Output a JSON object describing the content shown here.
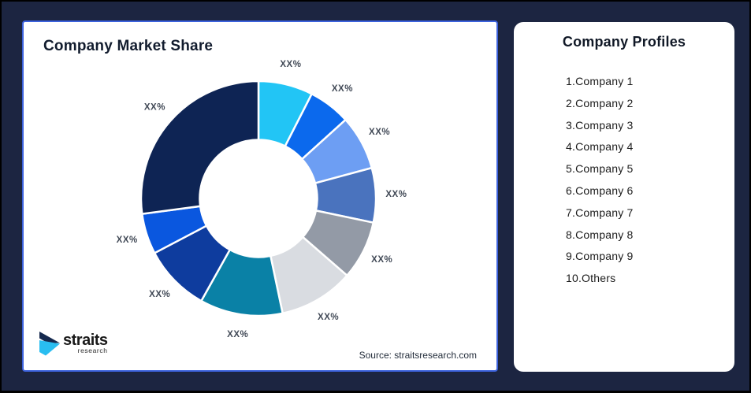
{
  "page": {
    "background_color": "#1C2541",
    "frame_border_color": "#000000"
  },
  "chart_card": {
    "title": "Company Market Share",
    "source": "Source: straitsresearch.com",
    "border_color": "#3C62DD",
    "logo": {
      "brand": "straits",
      "sub": "research",
      "arrow_navy": "#15294E",
      "arrow_cyan": "#29BDF0"
    }
  },
  "chart_data": {
    "type": "pie",
    "subtype": "donut",
    "title": "Company Market Share",
    "start_angle_deg": 0,
    "direction": "clockwise",
    "inner_radius_ratio": 0.5,
    "gap_stroke_color": "#ffffff",
    "data_label_placeholder": "XX%",
    "legend_position": "none",
    "slices": [
      {
        "label": "XX%",
        "value_pct": 7.5,
        "color": "#22C5F5"
      },
      {
        "label": "XX%",
        "value_pct": 5.8,
        "color": "#0B69ED"
      },
      {
        "label": "XX%",
        "value_pct": 7.5,
        "color": "#6D9EF3"
      },
      {
        "label": "XX%",
        "value_pct": 7.5,
        "color": "#4A73BE"
      },
      {
        "label": "XX%",
        "value_pct": 8.1,
        "color": "#939AA6"
      },
      {
        "label": "XX%",
        "value_pct": 10.3,
        "color": "#D9DCE1"
      },
      {
        "label": "XX%",
        "value_pct": 11.4,
        "color": "#0A81A6"
      },
      {
        "label": "XX%",
        "value_pct": 9.2,
        "color": "#0E3C9E"
      },
      {
        "label": "XX%",
        "value_pct": 5.6,
        "color": "#0A57DF"
      },
      {
        "label": "XX%",
        "value_pct": 27.1,
        "color": "#0E2454"
      }
    ]
  },
  "profiles_card": {
    "title": "Company Profiles",
    "items": [
      "1.Company 1",
      "2.Company 2",
      "3.Company 3",
      "4.Company 4",
      "5.Company 5",
      "6.Company 6",
      "7.Company 7",
      "8.Company 8",
      "9.Company 9",
      "10.Others"
    ]
  }
}
